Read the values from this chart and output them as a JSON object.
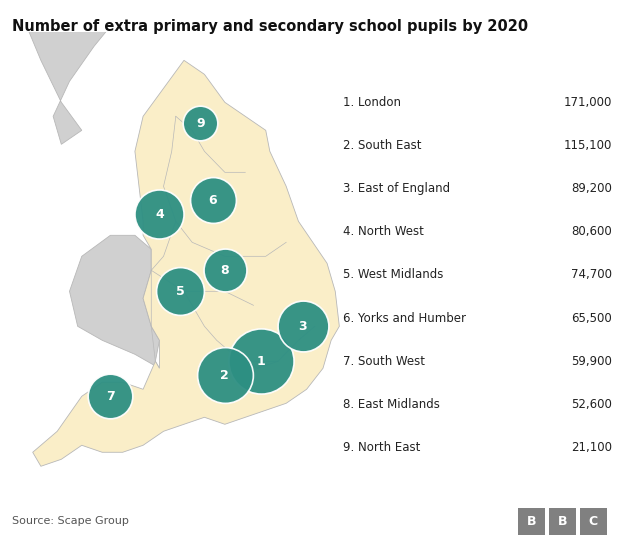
{
  "title": "Number of extra primary and secondary school pupils by 2020",
  "source": "Source: Scape Group",
  "bbc_logo": "BBC",
  "background_color": "#ffffff",
  "map_england_color": "#faeec8",
  "map_other_color": "#d0d0d0",
  "map_border_color": "#b8b8b8",
  "circle_color": "#2d8f82",
  "circle_text_color": "#ffffff",
  "regions": [
    {
      "id": 1,
      "name": "London",
      "value": "171,000",
      "lon": -0.12,
      "lat": 51.5,
      "size": 171000
    },
    {
      "id": 2,
      "name": "South East",
      "value": "115,100",
      "lon": -1.0,
      "lat": 51.3,
      "size": 115100
    },
    {
      "id": 3,
      "name": "East of England",
      "value": "89,200",
      "lon": 0.9,
      "lat": 52.0,
      "size": 89200
    },
    {
      "id": 4,
      "name": "North West",
      "value": "80,600",
      "lon": -2.6,
      "lat": 53.6,
      "size": 80600
    },
    {
      "id": 5,
      "name": "West Midlands",
      "value": "74,700",
      "lon": -2.1,
      "lat": 52.5,
      "size": 74700
    },
    {
      "id": 6,
      "name": "Yorks and Humber",
      "value": "65,500",
      "lon": -1.3,
      "lat": 53.8,
      "size": 65500
    },
    {
      "id": 7,
      "name": "South West",
      "value": "59,900",
      "lon": -3.8,
      "lat": 51.0,
      "size": 59900
    },
    {
      "id": 8,
      "name": "East Midlands",
      "value": "52,600",
      "lon": -1.0,
      "lat": 52.8,
      "size": 52600
    },
    {
      "id": 9,
      "name": "North East",
      "value": "21,100",
      "lon": -1.6,
      "lat": 54.9,
      "size": 21100
    }
  ],
  "legend_items": [
    {
      "id": 1,
      "name": "London",
      "value": "171,000"
    },
    {
      "id": 2,
      "name": "South East",
      "value": "115,100"
    },
    {
      "id": 3,
      "name": "East of England",
      "value": "89,200"
    },
    {
      "id": 4,
      "name": "North West",
      "value": "80,600"
    },
    {
      "id": 5,
      "name": "West Midlands",
      "value": "74,700"
    },
    {
      "id": 6,
      "name": "Yorks and Humber",
      "value": "65,500"
    },
    {
      "id": 7,
      "name": "South West",
      "value": "59,900"
    },
    {
      "id": 8,
      "name": "East Midlands",
      "value": "52,600"
    },
    {
      "id": 9,
      "name": "North East",
      "value": "21,100"
    }
  ],
  "map_xlim": [
    -6.5,
    2.2
  ],
  "map_ylim": [
    49.5,
    56.2
  ],
  "circle_size_min_pts": 400,
  "circle_size_max_pts": 2200
}
